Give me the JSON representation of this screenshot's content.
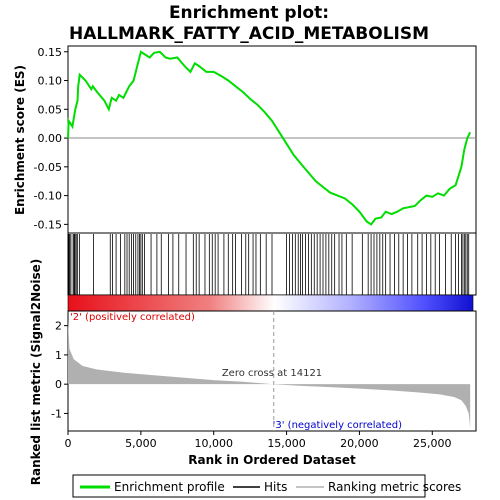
{
  "chart_data": {
    "type": "line",
    "title_line1": "Enrichment plot:",
    "title_line2": "HALLMARK_FATTY_ACID_METABOLISM",
    "xlabel": "Rank in Ordered Dataset",
    "es_ylabel": "Enrichment score (ES)",
    "metric_ylabel": "Ranked list metric (Signal2Noise)",
    "x_ticks": [
      "0",
      "5,000",
      "10,000",
      "15,000",
      "20,000",
      "25,000"
    ],
    "x_tick_values": [
      0,
      5000,
      10000,
      15000,
      20000,
      25000
    ],
    "xlim": [
      0,
      28000
    ],
    "es_ylim": [
      -0.165,
      0.16
    ],
    "es_y_ticks": [
      "0.15",
      "0.10",
      "0.05",
      "0.00",
      "-0.05",
      "-0.10",
      "-0.15"
    ],
    "es_y_tick_values": [
      0.15,
      0.1,
      0.05,
      0.0,
      -0.05,
      -0.1,
      -0.15
    ],
    "metric_ylim": [
      -1.6,
      2.5
    ],
    "metric_y_ticks": [
      "2",
      "1",
      "0",
      "-1"
    ],
    "metric_y_tick_values": [
      2,
      1,
      0,
      -1
    ],
    "zero_cross_rank": 14121,
    "zero_cross_label": "Zero cross at 14121",
    "pos_label": "'2' (positively correlated)",
    "neg_label": "'3' (negatively correlated)",
    "n_genes": 27600,
    "es_curve": [
      [
        0,
        0.0
      ],
      [
        50,
        0.03
      ],
      [
        300,
        0.02
      ],
      [
        500,
        0.05
      ],
      [
        650,
        0.065
      ],
      [
        700,
        0.09
      ],
      [
        800,
        0.11
      ],
      [
        1200,
        0.1
      ],
      [
        1600,
        0.085
      ],
      [
        1700,
        0.09
      ],
      [
        2000,
        0.08
      ],
      [
        2500,
        0.065
      ],
      [
        2800,
        0.05
      ],
      [
        3000,
        0.07
      ],
      [
        3300,
        0.065
      ],
      [
        3500,
        0.075
      ],
      [
        3800,
        0.07
      ],
      [
        4000,
        0.08
      ],
      [
        4200,
        0.09
      ],
      [
        4500,
        0.1
      ],
      [
        4700,
        0.12
      ],
      [
        5000,
        0.15
      ],
      [
        5300,
        0.145
      ],
      [
        5600,
        0.14
      ],
      [
        5900,
        0.148
      ],
      [
        6300,
        0.15
      ],
      [
        6700,
        0.14
      ],
      [
        7000,
        0.138
      ],
      [
        7500,
        0.14
      ],
      [
        8000,
        0.125
      ],
      [
        8400,
        0.115
      ],
      [
        8700,
        0.13
      ],
      [
        9000,
        0.125
      ],
      [
        9500,
        0.115
      ],
      [
        10000,
        0.115
      ],
      [
        10500,
        0.108
      ],
      [
        11000,
        0.1
      ],
      [
        11500,
        0.09
      ],
      [
        12000,
        0.08
      ],
      [
        12500,
        0.068
      ],
      [
        13000,
        0.058
      ],
      [
        13500,
        0.045
      ],
      [
        14000,
        0.03
      ],
      [
        14500,
        0.01
      ],
      [
        15000,
        -0.01
      ],
      [
        15500,
        -0.03
      ],
      [
        16000,
        -0.045
      ],
      [
        16500,
        -0.06
      ],
      [
        17000,
        -0.075
      ],
      [
        17500,
        -0.085
      ],
      [
        18000,
        -0.095
      ],
      [
        18500,
        -0.1
      ],
      [
        19000,
        -0.105
      ],
      [
        19500,
        -0.115
      ],
      [
        20000,
        -0.128
      ],
      [
        20500,
        -0.145
      ],
      [
        20800,
        -0.15
      ],
      [
        21100,
        -0.14
      ],
      [
        21500,
        -0.138
      ],
      [
        21800,
        -0.128
      ],
      [
        22200,
        -0.132
      ],
      [
        22600,
        -0.128
      ],
      [
        23000,
        -0.122
      ],
      [
        23400,
        -0.12
      ],
      [
        23800,
        -0.118
      ],
      [
        24200,
        -0.108
      ],
      [
        24600,
        -0.1
      ],
      [
        25000,
        -0.102
      ],
      [
        25400,
        -0.096
      ],
      [
        25800,
        -0.1
      ],
      [
        26200,
        -0.088
      ],
      [
        26600,
        -0.082
      ],
      [
        27000,
        -0.05
      ],
      [
        27200,
        -0.02
      ],
      [
        27400,
        0.0
      ],
      [
        27600,
        0.01
      ]
    ],
    "hits": [
      60,
      120,
      200,
      350,
      420,
      480,
      560,
      640,
      780,
      1750,
      2900,
      3050,
      3300,
      3600,
      3900,
      4050,
      4200,
      4350,
      4500,
      4650,
      4800,
      4900,
      5000,
      5100,
      5250,
      5700,
      6100,
      6400,
      6900,
      7200,
      7600,
      8100,
      8600,
      8800,
      9000,
      9400,
      9700,
      9900,
      10100,
      10300,
      10700,
      11000,
      11300,
      11500,
      11900,
      12200,
      12400,
      12700,
      12900,
      13200,
      13600,
      14000,
      15000,
      15200,
      15400,
      15600,
      15800,
      15950,
      16100,
      16300,
      16500,
      16700,
      16900,
      17100,
      17300,
      17500,
      17700,
      17900,
      18100,
      18300,
      18600,
      18800,
      19100,
      19500,
      20200,
      20600,
      20800,
      21000,
      21200,
      21400,
      21600,
      21800,
      22100,
      22400,
      22700,
      23000,
      23300,
      23600,
      24000,
      24300,
      24600,
      24900,
      25200,
      25500,
      25900,
      26300,
      26600,
      26800,
      27000,
      27100,
      27200,
      27300,
      27400,
      27500
    ],
    "metric_curve": [
      [
        0,
        2.2
      ],
      [
        100,
        1.2
      ],
      [
        400,
        0.85
      ],
      [
        1000,
        0.62
      ],
      [
        2000,
        0.5
      ],
      [
        4000,
        0.38
      ],
      [
        6000,
        0.3
      ],
      [
        8000,
        0.22
      ],
      [
        10000,
        0.14
      ],
      [
        12000,
        0.08
      ],
      [
        14121,
        0.0
      ],
      [
        16000,
        -0.06
      ],
      [
        18000,
        -0.1
      ],
      [
        20000,
        -0.15
      ],
      [
        22000,
        -0.21
      ],
      [
        24000,
        -0.28
      ],
      [
        25500,
        -0.35
      ],
      [
        26500,
        -0.44
      ],
      [
        27000,
        -0.55
      ],
      [
        27300,
        -0.75
      ],
      [
        27500,
        -1.0
      ],
      [
        27600,
        -1.5
      ]
    ],
    "legend": {
      "enrichment": "Enrichment profile",
      "hits": "Hits",
      "ranking": "Ranking metric scores"
    },
    "colors": {
      "es_line": "#00dd00",
      "hit": "#000000",
      "metric_fill": "#b0b0b0",
      "pos_text": "#dd0000",
      "neg_text": "#0000cc",
      "bar_red": "#ff0000",
      "bar_blue": "#0000ff"
    }
  }
}
